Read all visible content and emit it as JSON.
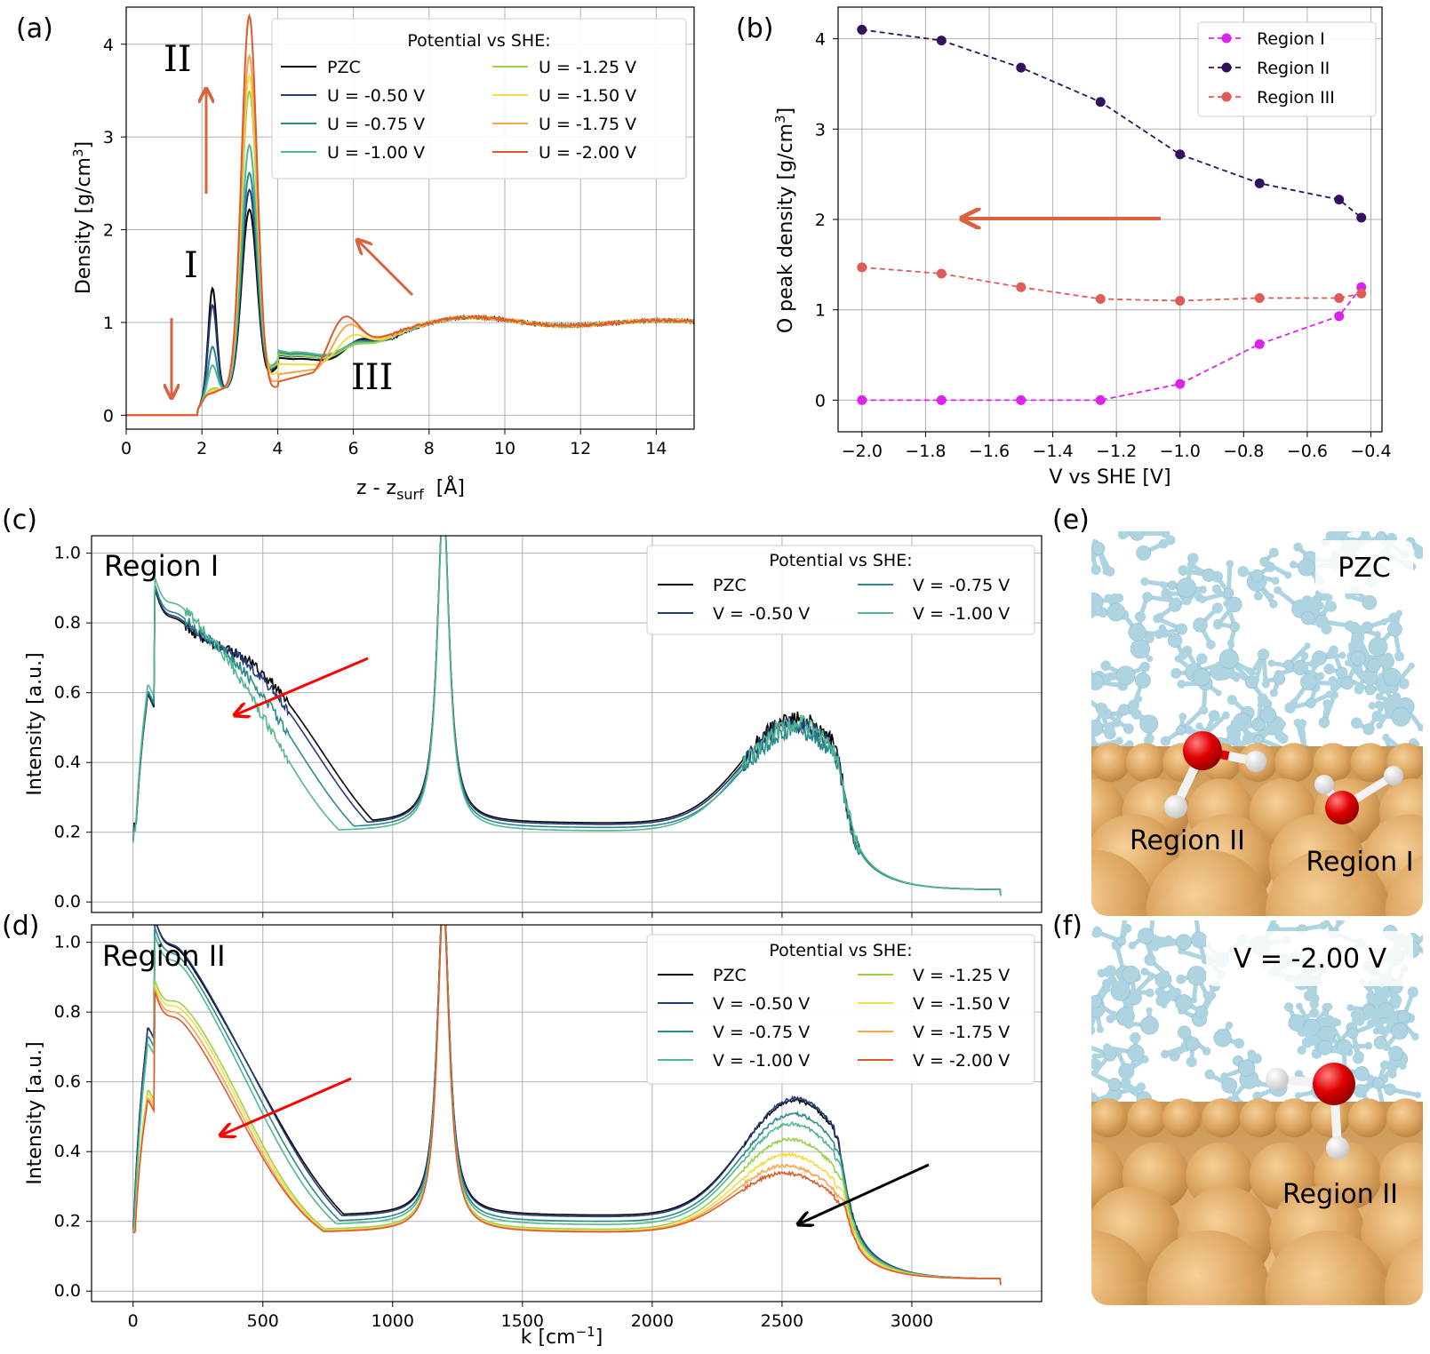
{
  "palette": {
    "PZC": "#000000",
    "u050": "#253a7a",
    "u075": "#2b8b8c",
    "u100": "#52b88f",
    "u125": "#9bd14a",
    "u150": "#f2dd44",
    "u175": "#f6a64d",
    "u200": "#dc5b2e",
    "regionI": "#dd22ee",
    "regionII": "#33115e",
    "regionIII": "#e05a59",
    "arrow_orange": "#d9633f",
    "arrow_red": "#ff0000",
    "arrow_black": "#000000",
    "water": "#aed4e2",
    "surface": "#d9a25e",
    "oxygen": "#e10000",
    "hydrogen": "#f2f2f2"
  },
  "panel_labels": {
    "a": "(a)",
    "b": "(b)",
    "c": "(c)",
    "d": "(d)",
    "e": "(e)",
    "f": "(f)"
  },
  "chart_data": [
    {
      "id": "a",
      "type": "line",
      "xlabel": "z - z",
      "xlabel_sub": "surf",
      "xlabel_unit": "[Å]",
      "ylabel": "Density [g/cm",
      "ylabel_sup": "3",
      "ylabel_end": "]",
      "xlim": [
        0,
        15
      ],
      "ylim": [
        -0.15,
        4.4
      ],
      "xticks": [
        "0",
        "2",
        "4",
        "6",
        "8",
        "10",
        "12",
        "14"
      ],
      "yticks": [
        "0",
        "1",
        "2",
        "3",
        "4"
      ],
      "legend_title": "Potential vs SHE:",
      "legend_position": "top-right",
      "annotations": [
        "II",
        "I",
        "III"
      ],
      "series": [
        {
          "name": "PZC",
          "color": "PZC",
          "p1": 1.38,
          "p2": 2.17,
          "p3": 1.3,
          "x3": 6.1,
          "m1": 0.9,
          "m2": 0.62
        },
        {
          "name": "U = -0.50 V",
          "color": "u050",
          "p1": 1.2,
          "p2": 2.38,
          "p3": 1.28,
          "x3": 6.05,
          "m1": 0.8,
          "m2": 0.65
        },
        {
          "name": "U = -0.75 V",
          "color": "u075",
          "p1": 0.75,
          "p2": 2.56,
          "p3": 1.26,
          "x3": 6.0,
          "m1": 0.5,
          "m2": 0.68
        },
        {
          "name": "U = -1.00 V",
          "color": "u100",
          "p1": 0.55,
          "p2": 2.86,
          "p3": 1.24,
          "x3": 5.95,
          "m1": 0.42,
          "m2": 0.7
        },
        {
          "name": "U = -1.25 V",
          "color": "u125",
          "p1": 0.3,
          "p2": 3.44,
          "p3": 1.23,
          "x3": 5.95,
          "m1": 0.2,
          "m2": 0.66
        },
        {
          "name": "U = -1.50 V",
          "color": "u150",
          "p1": 0.28,
          "p2": 3.62,
          "p3": 1.35,
          "x3": 5.9,
          "m1": 0.19,
          "m2": 0.55
        },
        {
          "name": "U = -1.75 V",
          "color": "u175",
          "p1": 0.26,
          "p2": 3.84,
          "p3": 1.48,
          "x3": 5.8,
          "m1": 0.18,
          "m2": 0.44
        },
        {
          "name": "U = -2.00 V",
          "color": "u200",
          "p1": 0.25,
          "p2": 4.28,
          "p3": 1.58,
          "x3": 5.7,
          "m1": 0.18,
          "m2": 0.36
        }
      ]
    },
    {
      "id": "b",
      "type": "line",
      "xlabel": "V vs SHE [V]",
      "ylabel": "O peak density [g/cm",
      "ylabel_sup": "3",
      "ylabel_end": "]",
      "xlim": [
        -2.075,
        -0.365
      ],
      "ylim": [
        -0.35,
        4.35
      ],
      "xticks": [
        "−2.0",
        "−1.8",
        "−1.6",
        "−1.4",
        "−1.2",
        "−1.0",
        "−0.8",
        "−0.6",
        "−0.4"
      ],
      "xtick_values": [
        -2.0,
        -1.8,
        -1.6,
        -1.4,
        -1.2,
        -1.0,
        -0.8,
        -0.6,
        -0.4
      ],
      "yticks": [
        "0",
        "1",
        "2",
        "3",
        "4"
      ],
      "legend_position": "top-right",
      "x": [
        -2.0,
        -1.75,
        -1.5,
        -1.25,
        -1.0,
        -0.75,
        -0.5,
        -0.43
      ],
      "series": [
        {
          "name": "Region I",
          "color": "regionI",
          "values": [
            0,
            0,
            0,
            0,
            0.18,
            0.62,
            0.93,
            1.25
          ]
        },
        {
          "name": "Region II",
          "color": "regionII",
          "values": [
            4.1,
            3.98,
            3.68,
            3.3,
            2.72,
            2.4,
            2.22,
            2.02
          ]
        },
        {
          "name": "Region III",
          "color": "regionIII",
          "values": [
            1.47,
            1.4,
            1.25,
            1.12,
            1.1,
            1.13,
            1.13,
            1.18
          ]
        }
      ]
    },
    {
      "id": "c",
      "type": "line",
      "title": "Region I",
      "ylabel": "Intensity [a.u.]",
      "xlim": [
        -160,
        3500
      ],
      "ylim": [
        -0.03,
        1.05
      ],
      "yticks": [
        "0.0",
        "0.2",
        "0.4",
        "0.6",
        "0.8",
        "1.0"
      ],
      "legend_title": "Potential vs SHE:",
      "legend_position": "top-right",
      "series": [
        {
          "name": "PZC",
          "color": "PZC",
          "b": 0.855,
          "bx": 500,
          "bw": 290,
          "m": 0.25,
          "s": 0.44
        },
        {
          "name": "V = -0.50 V",
          "color": "u050",
          "b": 0.84,
          "bx": 480,
          "bw": 285,
          "m": 0.245,
          "s": 0.43
        },
        {
          "name": "V = -0.75 V",
          "color": "u075",
          "b": 0.8,
          "bx": 430,
          "bw": 270,
          "m": 0.235,
          "s": 0.42
        },
        {
          "name": "V = -1.00 V",
          "color": "u100",
          "b": 0.77,
          "bx": 360,
          "bw": 250,
          "m": 0.225,
          "s": 0.45
        }
      ]
    },
    {
      "id": "d",
      "type": "line",
      "title": "Region II",
      "xlabel": "k  [cm",
      "xlabel_sup": "−1",
      "xlabel_end": "]",
      "ylabel": "Intensity [a.u.]",
      "xlim": [
        -160,
        3500
      ],
      "ylim": [
        -0.03,
        1.05
      ],
      "xticks": [
        "0",
        "500",
        "1000",
        "1500",
        "2000",
        "2500",
        "3000"
      ],
      "yticks": [
        "0.0",
        "0.2",
        "0.4",
        "0.6",
        "0.8",
        "1.0"
      ],
      "legend_title": "Potential vs SHE:",
      "legend_position": "top-right",
      "series": [
        {
          "name": "PZC",
          "color": "PZC",
          "b": 0.83,
          "bx": 300,
          "bw": 300,
          "m": 0.24,
          "s": 0.47
        },
        {
          "name": "V = -0.50 V",
          "color": "u050",
          "b": 0.835,
          "bx": 295,
          "bw": 290,
          "m": 0.235,
          "s": 0.48
        },
        {
          "name": "V = -0.75 V",
          "color": "u075",
          "b": 0.81,
          "bx": 290,
          "bw": 270,
          "m": 0.22,
          "s": 0.45
        },
        {
          "name": "V = -1.00 V",
          "color": "u100",
          "b": 0.79,
          "bx": 285,
          "bw": 250,
          "m": 0.21,
          "s": 0.43
        },
        {
          "name": "V = -1.25 V",
          "color": "u125",
          "b": 0.74,
          "bx": 280,
          "bw": 210,
          "m": 0.195,
          "s": 0.4
        },
        {
          "name": "V = -1.50 V",
          "color": "u150",
          "b": 0.725,
          "bx": 280,
          "bw": 205,
          "m": 0.19,
          "s": 0.36
        },
        {
          "name": "V = -1.75 V",
          "color": "u175",
          "b": 0.705,
          "bx": 280,
          "bw": 200,
          "m": 0.188,
          "s": 0.33
        },
        {
          "name": "V = -2.00 V",
          "color": "u200",
          "b": 0.685,
          "bx": 280,
          "bw": 200,
          "m": 0.186,
          "s": 0.31
        }
      ]
    }
  ],
  "snapshots": {
    "e": {
      "badge": "PZC",
      "labels": [
        "Region II",
        "Region I"
      ]
    },
    "f": {
      "badge": "V = -2.00 V",
      "labels": [
        "Region II"
      ]
    }
  }
}
